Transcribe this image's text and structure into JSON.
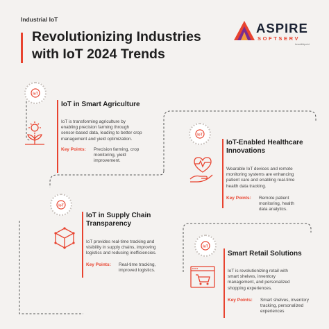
{
  "header": {
    "tag": "Industrial IoT",
    "title_line1": "Revolutionizing Industries",
    "title_line2": "with IoT 2024 Trends"
  },
  "logo": {
    "name": "ASPIRE",
    "sub": "SOFTSERV",
    "tiny": "beautifulpoint"
  },
  "key_points_label": "Key Points:",
  "sections": [
    {
      "heading": "IoT in Smart Agriculture",
      "desc": [
        "IoT is transforming agriculture by",
        "enabling precision farming through",
        "sensor-based data, leading to better crop",
        "management and yield optimization."
      ],
      "points": [
        "Precision farming, crop",
        "monitoring, yield",
        "improvement."
      ],
      "icon": "farming-icon"
    },
    {
      "heading": [
        "IoT-Enabled Healthcare",
        "Innovations"
      ],
      "desc": [
        "Wearable IoT devices and remote",
        "monitoring systems are enhancing",
        "patient care and enabling real-time",
        "health data tracking."
      ],
      "points": [
        "Remote patient",
        "monitoring, health",
        "data analytics."
      ],
      "icon": "health-heart-icon"
    },
    {
      "heading": [
        "IoT in Supply Chain",
        "Transparency"
      ],
      "desc": [
        "IoT provides real-time tracking and",
        "visibility in supply chains, improving",
        "logistics and reducing inefficiencies."
      ],
      "points": [
        "Real-time tracking,",
        "improved logistics."
      ],
      "icon": "package-cube-icon"
    },
    {
      "heading": "Smart Retail Solutions",
      "desc": [
        "IoT is revolutionizing retail with",
        "smart shelves, inventory",
        "management, and personalized",
        "shopping experiences."
      ],
      "points": [
        "Smart shelves, inventory",
        "tracking, personalized",
        "experiences"
      ],
      "icon": "shopping-cart-icon"
    }
  ],
  "colors": {
    "accent": "#e8432f",
    "background": "#f4f2f0",
    "text": "#1d1d1d",
    "connector": "#555555"
  }
}
